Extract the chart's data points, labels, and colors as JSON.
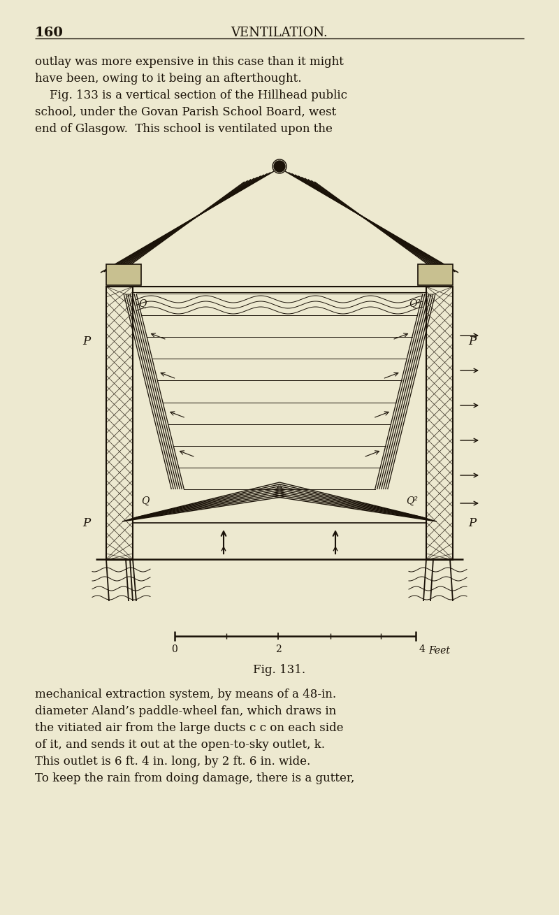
{
  "bg_color": "#ede9d0",
  "page_width": 8.0,
  "page_height": 13.09,
  "dpi": 100,
  "header_page_num": "160",
  "header_title": "VENTILATION.",
  "top_text_lines": [
    "outlay was more expensive in this case than it might",
    "have been, owing to it being an afterthought.",
    "    Fig. 133 is a vertical section of the Hillhead public",
    "school, under the Govan Parish School Board, west",
    "end of Glasgow.  This school is ventilated upon the"
  ],
  "bottom_text_lines": [
    "mechanical extraction system, by means of a 48-in.",
    "diameter Aland’s paddle-wheel fan, which draws in",
    "the vitiated air from the large ducts c c on each side",
    "of it, and sends it out at the open-to-sky outlet, k.",
    "This outlet is 6 ft. 4 in. long, by 2 ft. 6 in. wide.",
    "To keep the rain from doing damage, there is a gutter,"
  ],
  "fig_caption": "Fig. 131.",
  "ink_color": "#1a1208",
  "line_color": "#1a1208"
}
